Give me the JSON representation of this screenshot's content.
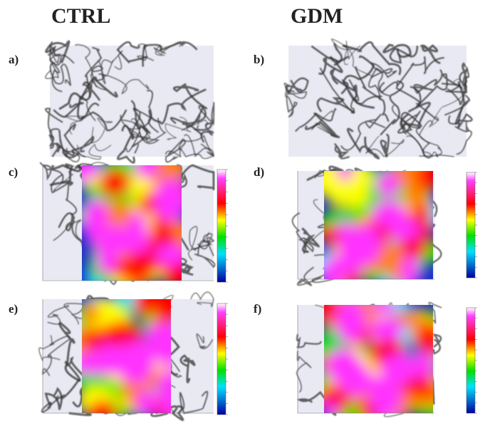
{
  "columns": [
    "CTRL",
    "GDM"
  ],
  "panels": [
    {
      "label": "a)"
    },
    {
      "label": "b)"
    },
    {
      "label": "c)"
    },
    {
      "label": "d)"
    },
    {
      "label": "e)"
    },
    {
      "label": "f)"
    }
  ]
}
